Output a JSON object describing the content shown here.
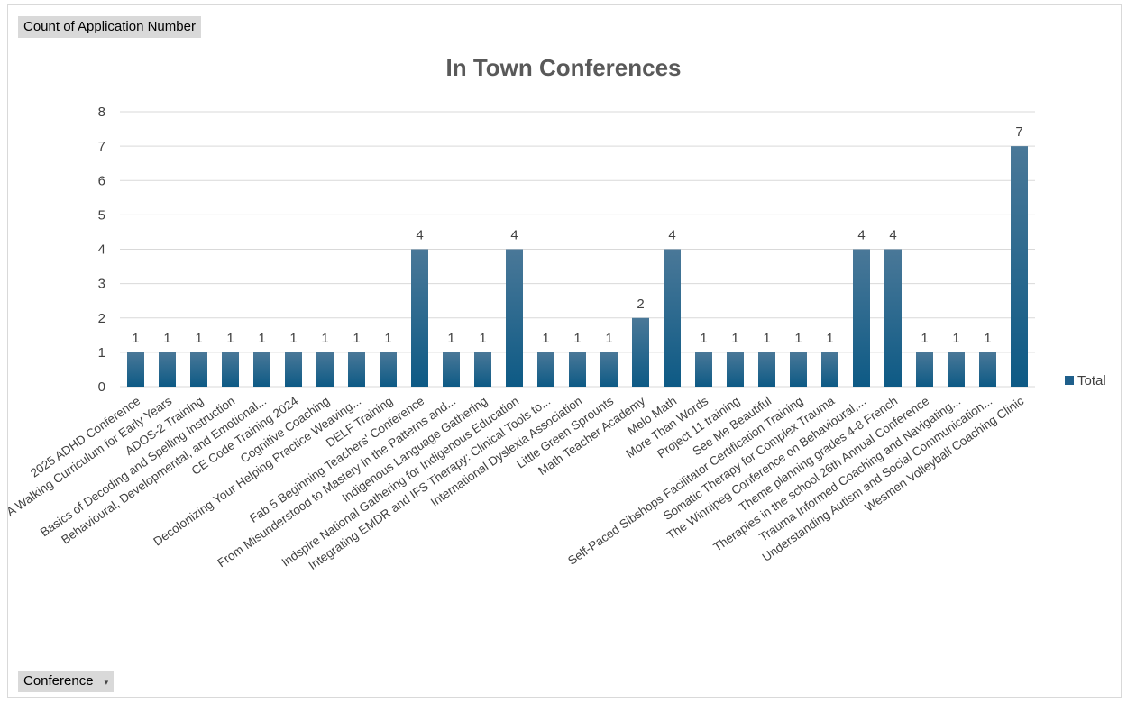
{
  "value_field_label": "Count of Application  Number",
  "axis_field_label": "Conference",
  "axis_field_dropdown": "▾",
  "legend_icon_color": "#1f5f8b",
  "chart_data": {
    "type": "bar",
    "title": "In Town Conferences",
    "xlabel": "",
    "ylabel": "",
    "ylim": [
      0,
      8
    ],
    "yticks": [
      0,
      1,
      2,
      3,
      4,
      5,
      6,
      7,
      8
    ],
    "grid": true,
    "legend_position": "right",
    "bar_color_top": "#4a7898",
    "bar_color_bottom": "#0d5a85",
    "categories": [
      "2025 ADHD Conference",
      "A Walking Curriculum for Early Years",
      "ADOS-2 Training",
      "Basics of Decoding and Spelling Instruction",
      "Behavioural, Developmental, and Emotional...",
      "CE Code Training 2024",
      "Cognitive Coaching",
      "Decolonizing Your Helping Practice Weaving...",
      "DELF Training",
      "Fab 5 Beginning Teachers' Conference",
      "From Misunderstood to Mastery in the Patterns and...",
      "Indigenous Language Gathering",
      "Indspire National Gathering for Indigenous Education",
      "Integrating EMDR and IFS Therapy: Clinical Tools to...",
      "International Dyslexia Association",
      "Little Green Sprounts",
      "Math Teacher Academy",
      "Melo Math",
      "More Than Words",
      "Project 11 training",
      "See Me Beautiful",
      "Self-Paced Sibshops Facilitator Certification Training",
      "Somatic Therapy for Complex Trauma",
      "The Winnipeg Conference on Behavioural,...",
      "Theme planning grades 4-8 French",
      "Therapies in the school 26th Annual Conference",
      "Trauma Informed Coaching and Navigating...",
      "Understanding Autism and Social Communication...",
      "Wesmen Volleyball Coaching Clinic"
    ],
    "series": [
      {
        "name": "Total",
        "values": [
          1,
          1,
          1,
          1,
          1,
          1,
          1,
          1,
          1,
          4,
          1,
          1,
          4,
          1,
          1,
          1,
          2,
          4,
          1,
          1,
          1,
          1,
          1,
          4,
          4,
          1,
          1,
          1,
          7
        ]
      }
    ]
  }
}
